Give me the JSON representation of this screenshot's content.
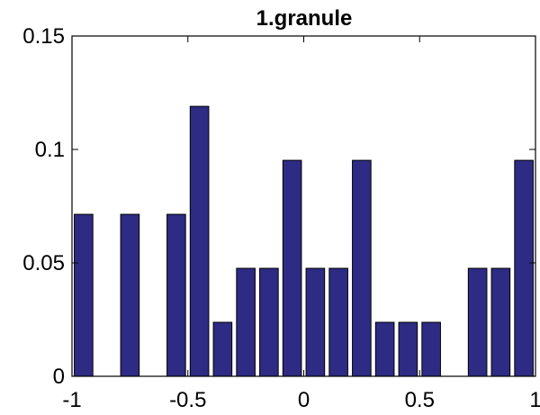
{
  "chart_data": {
    "type": "bar",
    "title": "1.granule",
    "xlabel": "",
    "ylabel": "",
    "xlim": [
      -1,
      1
    ],
    "ylim": [
      0,
      0.15
    ],
    "x_ticks": [
      -1,
      -0.5,
      0,
      0.5,
      1
    ],
    "x_tick_labels": [
      "-1",
      "-0.5",
      "0",
      "0.5",
      "1"
    ],
    "y_ticks": [
      0,
      0.05,
      0.1,
      0.15
    ],
    "y_tick_labels": [
      "0",
      "0.05",
      "0.1",
      "0.15"
    ],
    "grid": false,
    "bar_color": "#2e2b84",
    "bar_edge_color": "#000000",
    "x": [
      -0.95,
      -0.85,
      -0.75,
      -0.65,
      -0.55,
      -0.45,
      -0.35,
      -0.25,
      -0.15,
      -0.05,
      0.05,
      0.15,
      0.25,
      0.35,
      0.45,
      0.55,
      0.65,
      0.75,
      0.85,
      0.95
    ],
    "values": [
      0.0714,
      0,
      0.0714,
      0,
      0.0714,
      0.119,
      0.0238,
      0.0476,
      0.0476,
      0.0952,
      0.0476,
      0.0476,
      0.0952,
      0.0238,
      0.0238,
      0.0238,
      0,
      0.0476,
      0.0476,
      0.0952
    ]
  }
}
